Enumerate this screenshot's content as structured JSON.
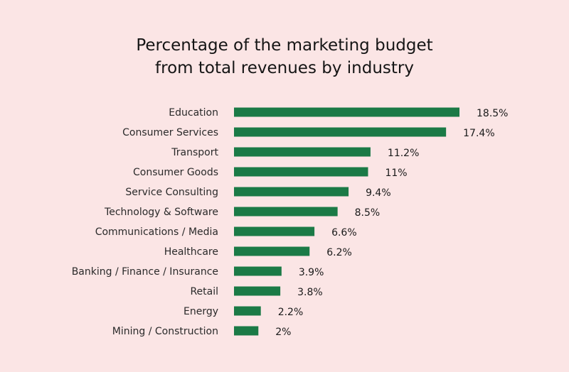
{
  "chart_data": {
    "type": "bar",
    "orientation": "horizontal",
    "title_line1": "Percentage of the marketing budget",
    "title_line2": "from total revenues by industry",
    "categories": [
      "Education",
      "Consumer Services",
      "Transport",
      "Consumer Goods",
      "Service Consulting",
      "Technology & Software",
      "Communications / Media",
      "Healthcare",
      "Banking / Finance / Insurance",
      "Retail",
      "Energy",
      "Mining / Construction"
    ],
    "values": [
      18.5,
      17.4,
      11.2,
      11,
      9.4,
      8.5,
      6.6,
      6.2,
      3.9,
      3.8,
      2.2,
      2
    ],
    "value_labels": [
      "18.5%",
      "17.4%",
      "11.2%",
      "11%",
      "9.4%",
      "8.5%",
      "6.6%",
      "6.2%",
      "3.9%",
      "3.8%",
      "2.2%",
      "2%"
    ],
    "xlabel": "",
    "ylabel": "",
    "grid": false,
    "colors": {
      "bar": "#1b7a46",
      "background": "#fbe5e5"
    }
  }
}
